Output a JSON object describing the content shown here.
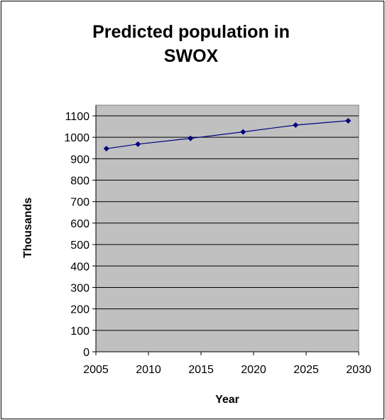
{
  "chart_data": {
    "type": "line",
    "title_line1": "Predicted population in",
    "title_line2": "SWOX",
    "xlabel": "Year",
    "ylabel": "Thousands",
    "xlim": [
      2005,
      2030
    ],
    "ylim": [
      0,
      1100
    ],
    "x_ticks": [
      2005,
      2010,
      2015,
      2020,
      2025,
      2030
    ],
    "y_ticks": [
      0,
      100,
      200,
      300,
      400,
      500,
      600,
      700,
      800,
      900,
      1000,
      1100
    ],
    "grid": "horizontal",
    "legend": "none",
    "series": [
      {
        "x": [
          2006,
          2009,
          2014,
          2019,
          2024,
          2029
        ],
        "values": [
          947,
          968,
          995,
          1025,
          1057,
          1077
        ]
      }
    ],
    "colors": {
      "plot_background": "#c0c0c0",
      "line": "#000080",
      "gridline": "#000000"
    }
  }
}
